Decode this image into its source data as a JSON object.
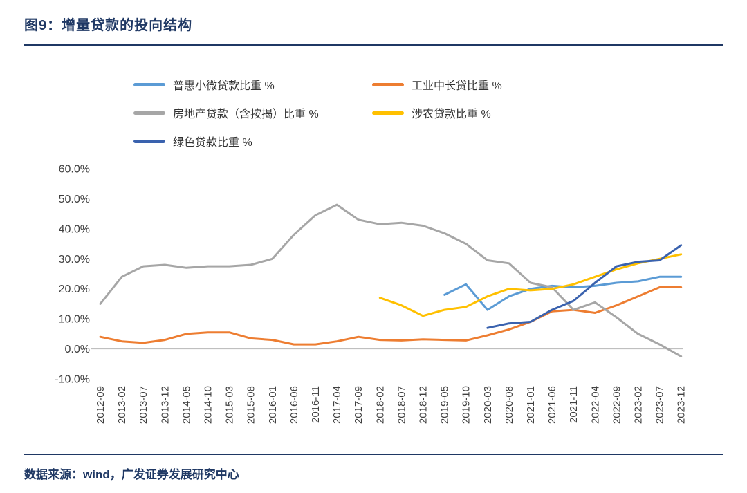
{
  "header": {
    "title": "图9：增量贷款的投向结构"
  },
  "footer": {
    "source_note": "数据来源：wind，广发证券发展研究中心"
  },
  "colors": {
    "accent_navy": "#1F3864",
    "axis_text": "#404040",
    "axis_line": "#BFBFBF"
  },
  "chart_data": {
    "type": "line",
    "title": "增量贷款的投向结构",
    "xlabel": "",
    "ylabel": "",
    "ylim": [
      -10,
      60
    ],
    "grid": false,
    "legend_position": "top",
    "y_ticks": [
      {
        "label": "60.0%",
        "value": 60
      },
      {
        "label": "50.0%",
        "value": 50
      },
      {
        "label": "40.0%",
        "value": 40
      },
      {
        "label": "30.0%",
        "value": 30
      },
      {
        "label": "20.0%",
        "value": 20
      },
      {
        "label": "10.0%",
        "value": 10
      },
      {
        "label": "0.0%",
        "value": 0
      },
      {
        "label": "-10.0%",
        "value": -10
      }
    ],
    "categories": [
      "2012-09",
      "2013-02",
      "2013-07",
      "2013-12",
      "2014-05",
      "2014-10",
      "2015-03",
      "2015-08",
      "2016-01",
      "2016-06",
      "2016-11",
      "2017-04",
      "2017-09",
      "2018-02",
      "2018-07",
      "2018-12",
      "2019-05",
      "2019-10",
      "2020-03",
      "2020-08",
      "2021-01",
      "2021-06",
      "2021-11",
      "2022-04",
      "2022-09",
      "2023-02",
      "2023-07",
      "2023-12"
    ],
    "series": [
      {
        "name": "普惠小微贷款比重 %",
        "color": "#5B9BD5",
        "values": [
          null,
          null,
          null,
          null,
          null,
          null,
          null,
          null,
          null,
          null,
          null,
          null,
          null,
          null,
          null,
          null,
          18,
          21.5,
          13,
          17.5,
          20,
          21,
          20.5,
          21,
          22,
          22.5,
          24,
          24
        ]
      },
      {
        "name": "工业中长贷比重 %",
        "color": "#ED7D31",
        "values": [
          4,
          2.5,
          2,
          3,
          5,
          5.5,
          5.5,
          3.5,
          3,
          1.5,
          1.5,
          2.5,
          4,
          3,
          2.8,
          3.2,
          3,
          2.8,
          4.5,
          6.5,
          9,
          12.5,
          13,
          12,
          14.5,
          17.5,
          20.5,
          20.5
        ]
      },
      {
        "name": "房地产贷款（含按揭）比重 %",
        "color": "#A6A6A6",
        "values": [
          15,
          24,
          27.5,
          28,
          27,
          27.5,
          27.5,
          28,
          30,
          38,
          44.5,
          48,
          43,
          41.5,
          42,
          41,
          38.5,
          35,
          29.5,
          28.5,
          22,
          20.5,
          13,
          15.5,
          10.5,
          5,
          1.5,
          -2.5
        ]
      },
      {
        "name": "涉农贷款比重 %",
        "color": "#FFC000",
        "values": [
          null,
          null,
          null,
          null,
          null,
          null,
          null,
          null,
          null,
          null,
          null,
          null,
          null,
          17,
          14.5,
          11,
          13,
          14,
          17.5,
          20,
          19.5,
          20,
          21.5,
          24,
          26.5,
          28.5,
          30,
          31.5
        ]
      },
      {
        "name": "绿色贷款比重 %",
        "color": "#3A62AE",
        "values": [
          null,
          null,
          null,
          null,
          null,
          null,
          null,
          null,
          null,
          null,
          null,
          null,
          null,
          null,
          null,
          null,
          null,
          null,
          7,
          8.5,
          9,
          13,
          16,
          22,
          27.5,
          29,
          29.5,
          34.5
        ]
      }
    ]
  }
}
